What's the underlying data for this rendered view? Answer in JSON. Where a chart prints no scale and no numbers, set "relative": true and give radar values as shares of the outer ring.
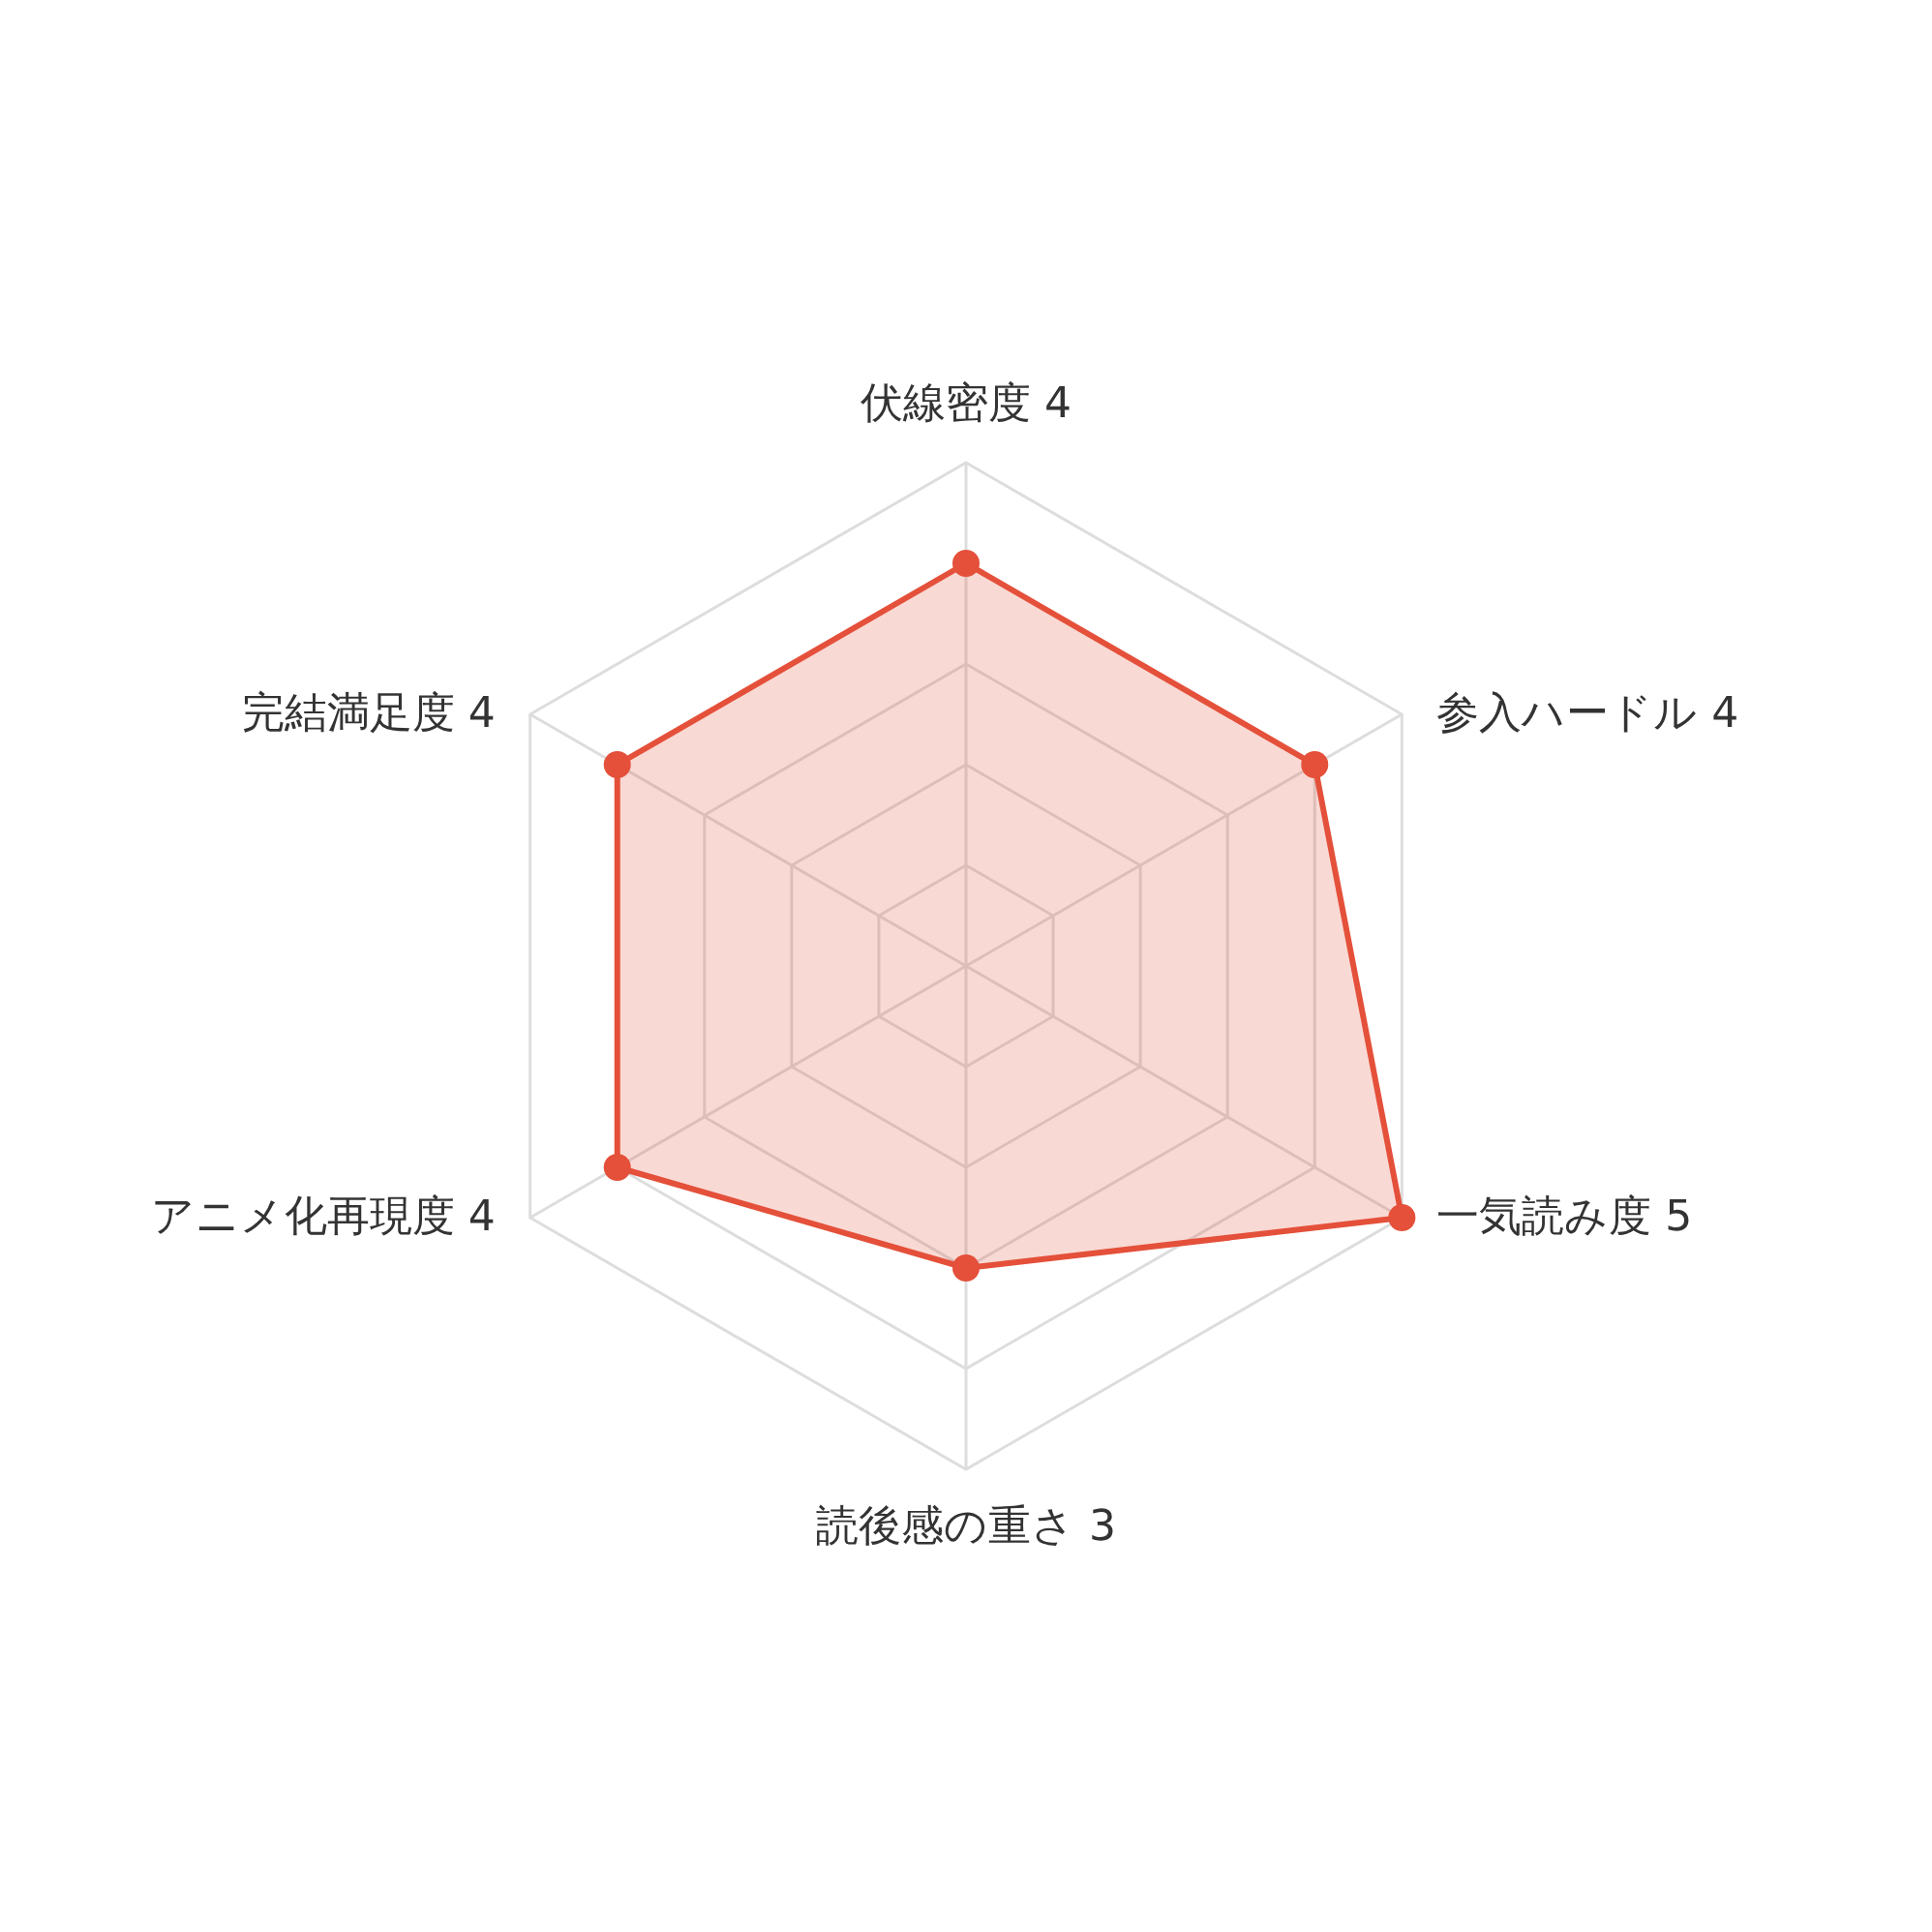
{
  "chart_data": {
    "type": "radar",
    "categories": [
      "伏線密度 4",
      "参入ハードル 4",
      "一気読み度 5",
      "読後感の重さ 3",
      "アニメ化再現度 4",
      "完結満足度 4"
    ],
    "series": [
      {
        "color": "#e4503a",
        "values": [
          0.8,
          0.8,
          1,
          0.6,
          0.8,
          0.8
        ]
      }
    ],
    "relative": true,
    "grid": true,
    "marker": "circle",
    "line_style": "solid"
  }
}
